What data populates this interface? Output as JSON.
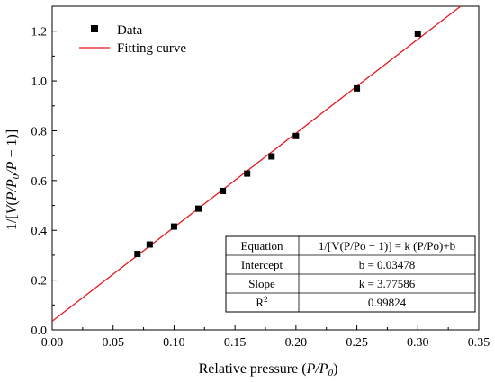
{
  "chart_data": {
    "type": "scatter",
    "xlabel": {
      "text": "Relative pressure (",
      "var": "P/P",
      "sub": "0",
      "close": ")"
    },
    "ylabel": {
      "pre": "1/[",
      "v": "V",
      "mid": "(",
      "p": "P",
      "slash": "/",
      "p0": "P",
      "sub": "0",
      "slash2": "/",
      "p2": "P",
      "post": " − 1)]"
    },
    "xlim": [
      0.0,
      0.35
    ],
    "ylim": [
      0.0,
      1.3
    ],
    "x_ticks": [
      0.0,
      0.05,
      0.1,
      0.15,
      0.2,
      0.25,
      0.3,
      0.35
    ],
    "x_tick_labels": [
      "0.00",
      "0.05",
      "0.10",
      "0.15",
      "0.20",
      "0.25",
      "0.30",
      "0.35"
    ],
    "y_ticks": [
      0.0,
      0.2,
      0.4,
      0.6,
      0.8,
      1.0,
      1.2
    ],
    "y_tick_labels": [
      "0.0",
      "0.2",
      "0.4",
      "0.6",
      "0.8",
      "1.0",
      "1.2"
    ],
    "grid": false,
    "legend_position": "top-left",
    "series": [
      {
        "name": "Data",
        "kind": "scatter",
        "color": "#000000",
        "marker": "square",
        "x": [
          0.07,
          0.08,
          0.1,
          0.12,
          0.14,
          0.16,
          0.18,
          0.2,
          0.25,
          0.3
        ],
        "y": [
          0.305,
          0.343,
          0.415,
          0.487,
          0.558,
          0.628,
          0.697,
          0.779,
          0.97,
          1.19
        ]
      },
      {
        "name": "Fitting curve",
        "kind": "line",
        "color": "#e8141c",
        "slope": 3.77586,
        "intercept": 0.03478
      }
    ],
    "fit_table": [
      {
        "label": "Equation",
        "value": "1/[V(P/Po − 1)] = k (P/Po)+b"
      },
      {
        "label": "Intercept",
        "value": "b = 0.03478"
      },
      {
        "label": "Slope",
        "value": "k = 3.77586"
      },
      {
        "label": "R",
        "label_sup": "2",
        "value": "0.99824"
      }
    ]
  }
}
